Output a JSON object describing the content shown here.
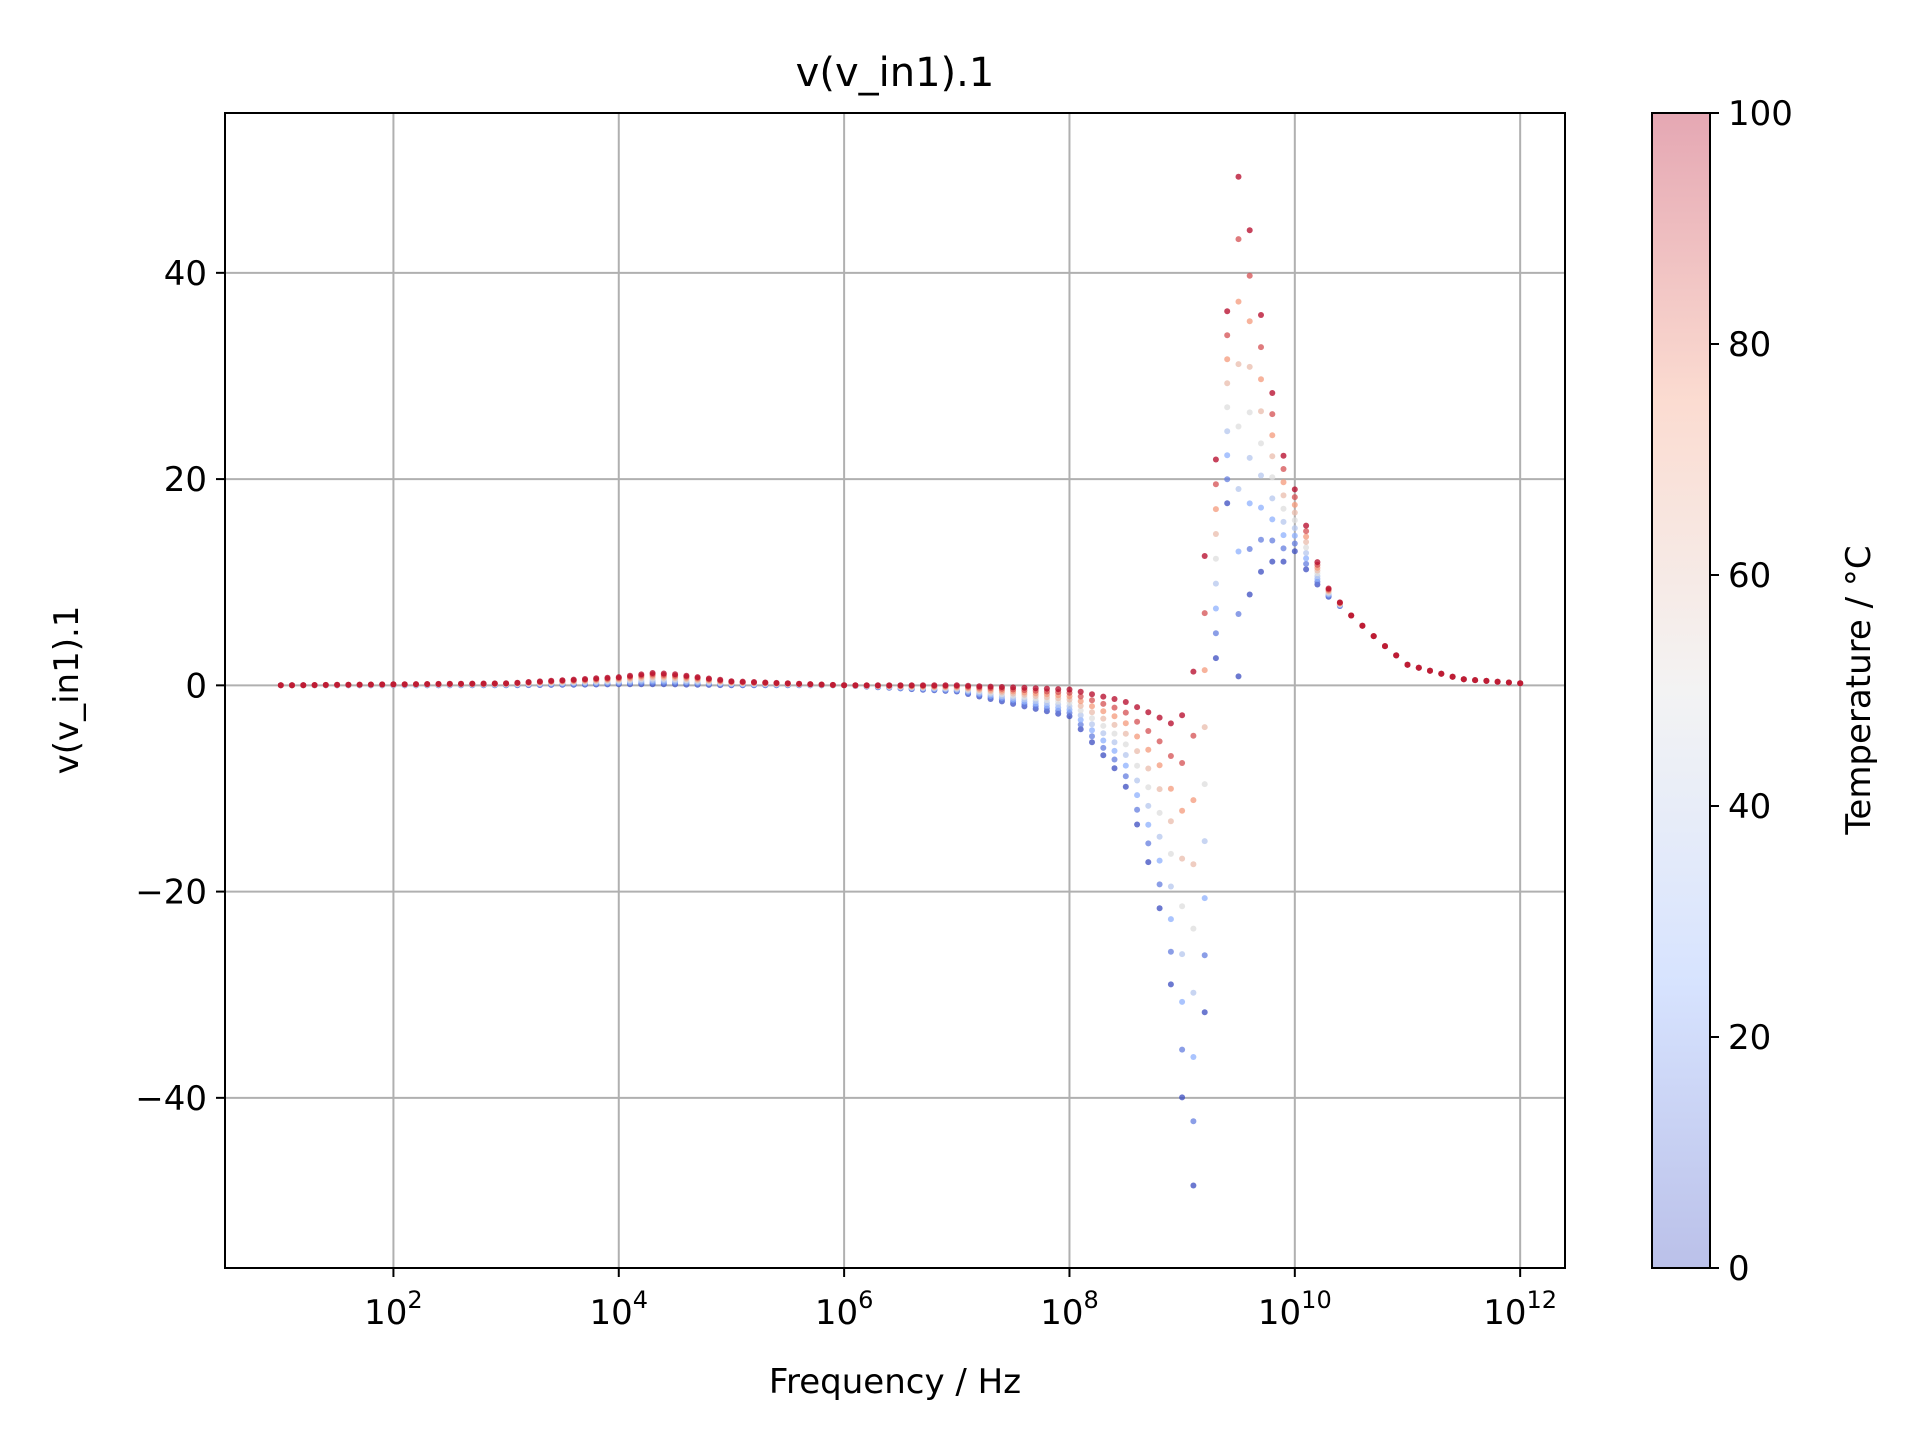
{
  "chart_data": {
    "type": "scatter",
    "title": "v(v_in1).1",
    "xlabel": "Frequency / Hz",
    "ylabel": "v(v_in1).1",
    "x_scale": "log",
    "xlim": [
      3.2,
      2500000000000.0
    ],
    "ylim": [
      -56.5,
      55.5
    ],
    "x_ticks": [
      {
        "value": 100,
        "base": "10",
        "exp": "2"
      },
      {
        "value": 10000,
        "base": "10",
        "exp": "4"
      },
      {
        "value": 1000000,
        "base": "10",
        "exp": "6"
      },
      {
        "value": 100000000,
        "base": "10",
        "exp": "8"
      },
      {
        "value": 10000000000,
        "base": "10",
        "exp": "10"
      },
      {
        "value": 1000000000000,
        "base": "10",
        "exp": "12"
      }
    ],
    "y_ticks": [
      {
        "value": 40,
        "label": "40"
      },
      {
        "value": 20,
        "label": "20"
      },
      {
        "value": 0,
        "label": "0"
      },
      {
        "value": -20,
        "label": "−20"
      },
      {
        "value": -40,
        "label": "−40"
      }
    ],
    "grid": true,
    "colorbar": {
      "label": "Temperature / °C",
      "colormap": "coolwarm",
      "range": [
        0,
        100
      ],
      "ticks": [
        0,
        20,
        40,
        60,
        80,
        100
      ],
      "colors": [
        "#3b4cc0",
        "#8db0fe",
        "#dddddd",
        "#f49a7b",
        "#b40426"
      ]
    },
    "temperature_levels": [
      0,
      12.5,
      25,
      37.5,
      50,
      62.5,
      75,
      87.5,
      100
    ],
    "series": [
      {
        "x": [
          10,
          1000.0,
          10000.0,
          20000.0,
          30000.0,
          100000.0,
          1000000.0,
          10000000.0,
          100000000.0,
          300000000.0,
          600000000.0,
          900000000.0,
          1200000000.0,
          1600000000.0,
          2000000000.0,
          2500000000.0,
          3200000000.0,
          4000000000.0,
          5000000000.0,
          6000000000.0,
          7000000000.0,
          8000000000.0,
          10000000000.0,
          13000000000.0,
          18000000000.0,
          30000000000.0,
          60000000000.0,
          100000000000.0,
          300000000000.0,
          1000000000000.0
        ],
        "y_min": [
          0,
          0,
          0.1,
          0.1,
          0.1,
          0,
          0,
          -0.6,
          -3,
          -9,
          -20,
          -33,
          -52,
          -31,
          3,
          18,
          0,
          9,
          11,
          12,
          12,
          12,
          13,
          11,
          9,
          7,
          4,
          2,
          0.6,
          0.2
        ],
        "y_max": [
          0,
          0.2,
          0.8,
          1.2,
          1.1,
          0.4,
          0,
          0,
          -0.4,
          -1.5,
          -3,
          -4,
          -1,
          13,
          22,
          36,
          50,
          44,
          36,
          29,
          27,
          22,
          19,
          15,
          10,
          7,
          4,
          2,
          0.6,
          0.2
        ]
      }
    ]
  }
}
